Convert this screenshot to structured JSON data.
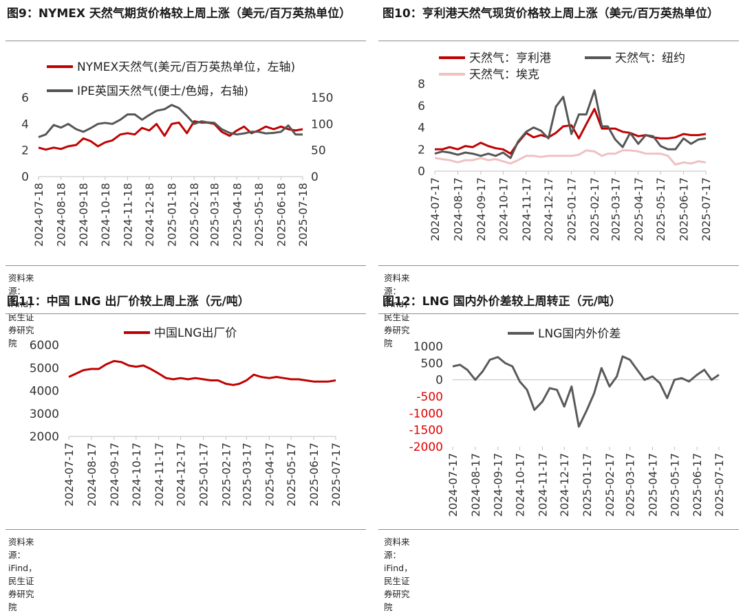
{
  "charts": [
    {
      "title": "图9：NYMEX 天然气期货价格较上周上涨（美元/百万英热单位）",
      "source": "资料来源：iFind，民生证券研究院"
    },
    {
      "title": "图10：亨利港天然气现货价格较上周上涨（美元/百万英热单位）",
      "source": "资料来源：iFind，民生证券研究院"
    },
    {
      "title": "图11：中国 LNG 出厂价较上周上涨（元/吨）",
      "source": "资料来源：iFind，民生证券研究院"
    },
    {
      "title": "图12：LNG 国内外价差较上周转正（元/吨）",
      "source": "资料来源：iFind，民生证券研究院"
    }
  ],
  "chart_data": [
    {
      "type": "line",
      "dual_axis": true,
      "grid": false,
      "legend_position": "top",
      "ylim": [
        0,
        6
      ],
      "yticks": [
        0,
        2,
        4,
        6
      ],
      "y2lim": [
        0,
        150
      ],
      "y2ticks": [
        0,
        50,
        100,
        150
      ],
      "xticks": [
        "2024-07-18",
        "2024-08-18",
        "2024-09-18",
        "2024-10-18",
        "2024-11-18",
        "2024-12-18",
        "2025-01-18",
        "2025-02-18",
        "2025-03-18",
        "2025-04-18",
        "2025-05-18",
        "2025-06-18",
        "2025-07-18"
      ],
      "x": [
        "2024-07-18",
        "2024-07-28",
        "2024-08-08",
        "2024-08-18",
        "2024-08-28",
        "2024-09-08",
        "2024-09-18",
        "2024-09-28",
        "2024-10-08",
        "2024-10-18",
        "2024-10-28",
        "2024-11-08",
        "2024-11-18",
        "2024-11-28",
        "2024-12-08",
        "2024-12-18",
        "2024-12-28",
        "2025-01-08",
        "2025-01-18",
        "2025-01-28",
        "2025-02-08",
        "2025-02-18",
        "2025-02-28",
        "2025-03-08",
        "2025-03-18",
        "2025-03-28",
        "2025-04-08",
        "2025-04-18",
        "2025-04-28",
        "2025-05-08",
        "2025-05-18",
        "2025-05-28",
        "2025-06-08",
        "2025-06-18",
        "2025-06-28",
        "2025-07-08",
        "2025-07-18"
      ],
      "series": [
        {
          "name": "NYMEX天然气(美元/百万英热单位，左轴)",
          "color": "#c00000",
          "axis": "left",
          "values": [
            2.2,
            2.05,
            2.2,
            2.1,
            2.3,
            2.4,
            2.9,
            2.7,
            2.3,
            2.6,
            2.75,
            3.2,
            3.3,
            3.2,
            3.7,
            3.5,
            4.0,
            3.1,
            4.0,
            4.1,
            3.3,
            4.2,
            4.1,
            4.1,
            4.0,
            3.4,
            3.1,
            3.5,
            3.8,
            3.3,
            3.5,
            3.8,
            3.6,
            3.8,
            3.6,
            3.5,
            3.6
          ]
        },
        {
          "name": "IPE英国天然气(便士/色姆，右轴)",
          "color": "#555555",
          "axis": "right",
          "values": [
            75,
            80,
            98,
            93,
            100,
            90,
            85,
            92,
            100,
            102,
            100,
            108,
            118,
            118,
            108,
            117,
            125,
            128,
            136,
            130,
            115,
            100,
            105,
            103,
            102,
            90,
            83,
            80,
            82,
            85,
            85,
            82,
            83,
            85,
            97,
            80,
            80
          ]
        }
      ]
    },
    {
      "type": "line",
      "grid": false,
      "legend_position": "top",
      "ylim": [
        0,
        8
      ],
      "yticks": [
        0,
        2,
        4,
        6,
        8
      ],
      "xticks": [
        "2024-07-17",
        "2024-08-17",
        "2024-09-17",
        "2024-10-17",
        "2024-11-17",
        "2024-12-17",
        "2025-01-17",
        "2025-02-17",
        "2025-03-17",
        "2025-04-17",
        "2025-05-17",
        "2025-06-17",
        "2025-07-17"
      ],
      "x": [
        "2024-07-17",
        "2024-07-27",
        "2024-08-06",
        "2024-08-17",
        "2024-08-27",
        "2024-09-06",
        "2024-09-17",
        "2024-09-27",
        "2024-10-07",
        "2024-10-17",
        "2024-10-27",
        "2024-11-06",
        "2024-11-17",
        "2024-11-27",
        "2024-12-07",
        "2024-12-17",
        "2024-12-27",
        "2025-01-06",
        "2025-01-17",
        "2025-01-27",
        "2025-02-06",
        "2025-02-17",
        "2025-02-27",
        "2025-03-07",
        "2025-03-17",
        "2025-03-27",
        "2025-04-06",
        "2025-04-17",
        "2025-04-27",
        "2025-05-07",
        "2025-05-17",
        "2025-05-27",
        "2025-06-06",
        "2025-06-17",
        "2025-06-27",
        "2025-07-07",
        "2025-07-17"
      ],
      "series": [
        {
          "name": "天然气：亨利港",
          "color": "#c00000",
          "values": [
            2.0,
            2.0,
            2.2,
            2.0,
            2.3,
            2.2,
            2.6,
            2.3,
            2.1,
            2.0,
            1.6,
            2.6,
            3.5,
            3.1,
            3.3,
            3.1,
            3.5,
            4.1,
            4.2,
            3.0,
            4.3,
            5.7,
            3.9,
            3.9,
            3.9,
            3.6,
            3.5,
            3.2,
            3.3,
            3.1,
            3.0,
            3.0,
            3.1,
            3.4,
            3.3,
            3.3,
            3.4
          ]
        },
        {
          "name": "天然气：纽约",
          "color": "#555555",
          "values": [
            1.6,
            1.8,
            1.7,
            1.5,
            1.7,
            1.6,
            1.4,
            1.6,
            1.4,
            1.7,
            1.2,
            2.7,
            3.6,
            4.0,
            3.7,
            3.0,
            5.9,
            6.8,
            3.4,
            5.2,
            5.2,
            7.4,
            4.1,
            4.1,
            2.9,
            2.2,
            3.5,
            2.5,
            3.3,
            3.2,
            2.3,
            2.0,
            2.0,
            3.0,
            2.5,
            2.9,
            3.0
          ]
        },
        {
          "name": "天然气：埃克",
          "color": "#efc1c1",
          "values": [
            1.2,
            1.1,
            1.0,
            0.8,
            1.0,
            1.0,
            1.2,
            1.0,
            1.1,
            0.9,
            0.7,
            1.0,
            1.4,
            1.4,
            1.3,
            1.4,
            1.4,
            1.4,
            1.4,
            1.5,
            1.9,
            1.8,
            1.4,
            1.6,
            1.6,
            1.9,
            1.9,
            1.8,
            1.6,
            1.6,
            1.6,
            1.4,
            0.6,
            0.8,
            0.7,
            0.9,
            0.8
          ]
        }
      ]
    },
    {
      "type": "line",
      "grid": false,
      "legend_position": "top",
      "ylim": [
        2000,
        6000
      ],
      "yticks": [
        2000,
        3000,
        4000,
        5000,
        6000
      ],
      "xticks": [
        "2024-07-17",
        "2024-08-17",
        "2024-09-17",
        "2024-10-17",
        "2024-11-17",
        "2024-12-17",
        "2025-01-17",
        "2025-02-17",
        "2025-03-17",
        "2025-04-17",
        "2025-05-17",
        "2025-06-17",
        "2025-07-17"
      ],
      "x": [
        "2024-07-17",
        "2024-07-27",
        "2024-08-06",
        "2024-08-17",
        "2024-08-27",
        "2024-09-06",
        "2024-09-17",
        "2024-09-27",
        "2024-10-07",
        "2024-10-17",
        "2024-10-27",
        "2024-11-06",
        "2024-11-17",
        "2024-11-27",
        "2024-12-07",
        "2024-12-17",
        "2024-12-27",
        "2025-01-06",
        "2025-01-17",
        "2025-01-27",
        "2025-02-06",
        "2025-02-17",
        "2025-02-27",
        "2025-03-07",
        "2025-03-17",
        "2025-03-27",
        "2025-04-06",
        "2025-04-17",
        "2025-04-27",
        "2025-05-07",
        "2025-05-17",
        "2025-05-27",
        "2025-06-06",
        "2025-06-17",
        "2025-06-27",
        "2025-07-07",
        "2025-07-17"
      ],
      "series": [
        {
          "name": "中国LNG出厂价",
          "color": "#c00000",
          "values": [
            4600,
            4750,
            4900,
            4950,
            4950,
            5150,
            5300,
            5250,
            5100,
            5050,
            5100,
            4950,
            4750,
            4550,
            4500,
            4550,
            4500,
            4550,
            4500,
            4450,
            4450,
            4300,
            4250,
            4300,
            4450,
            4700,
            4600,
            4550,
            4600,
            4550,
            4500,
            4500,
            4450,
            4400,
            4400,
            4400,
            4450
          ]
        }
      ]
    },
    {
      "type": "line",
      "grid": false,
      "legend_position": "top",
      "ylim": [
        -2000,
        1000
      ],
      "yticks": [
        -2000,
        -1500,
        -1000,
        -500,
        0,
        500,
        1000
      ],
      "negative_tick_color": "#e00000",
      "xticks": [
        "2024-07-17",
        "2024-08-17",
        "2024-09-17",
        "2024-10-17",
        "2024-11-17",
        "2024-12-17",
        "2025-01-17",
        "2025-02-17",
        "2025-03-17",
        "2025-04-17",
        "2025-05-17",
        "2025-06-17",
        "2025-07-17"
      ],
      "x": [
        "2024-07-17",
        "2024-07-27",
        "2024-08-06",
        "2024-08-17",
        "2024-08-27",
        "2024-09-06",
        "2024-09-17",
        "2024-09-27",
        "2024-10-07",
        "2024-10-17",
        "2024-10-27",
        "2024-11-06",
        "2024-11-17",
        "2024-11-27",
        "2024-12-07",
        "2024-12-17",
        "2024-12-27",
        "2025-01-06",
        "2025-01-17",
        "2025-01-27",
        "2025-02-06",
        "2025-02-17",
        "2025-02-27",
        "2025-03-07",
        "2025-03-17",
        "2025-03-27",
        "2025-04-06",
        "2025-04-17",
        "2025-04-27",
        "2025-05-07",
        "2025-05-17",
        "2025-05-27",
        "2025-06-06",
        "2025-06-17",
        "2025-06-27",
        "2025-07-07",
        "2025-07-17"
      ],
      "series": [
        {
          "name": "LNG国内外价差",
          "color": "#595959",
          "values": [
            400,
            450,
            300,
            0,
            250,
            600,
            680,
            500,
            400,
            -50,
            -300,
            -900,
            -650,
            -250,
            -300,
            -800,
            -200,
            -1400,
            -900,
            -400,
            350,
            -200,
            100,
            700,
            600,
            300,
            0,
            100,
            -100,
            -550,
            0,
            50,
            -50,
            150,
            300,
            0,
            150
          ]
        }
      ]
    }
  ]
}
